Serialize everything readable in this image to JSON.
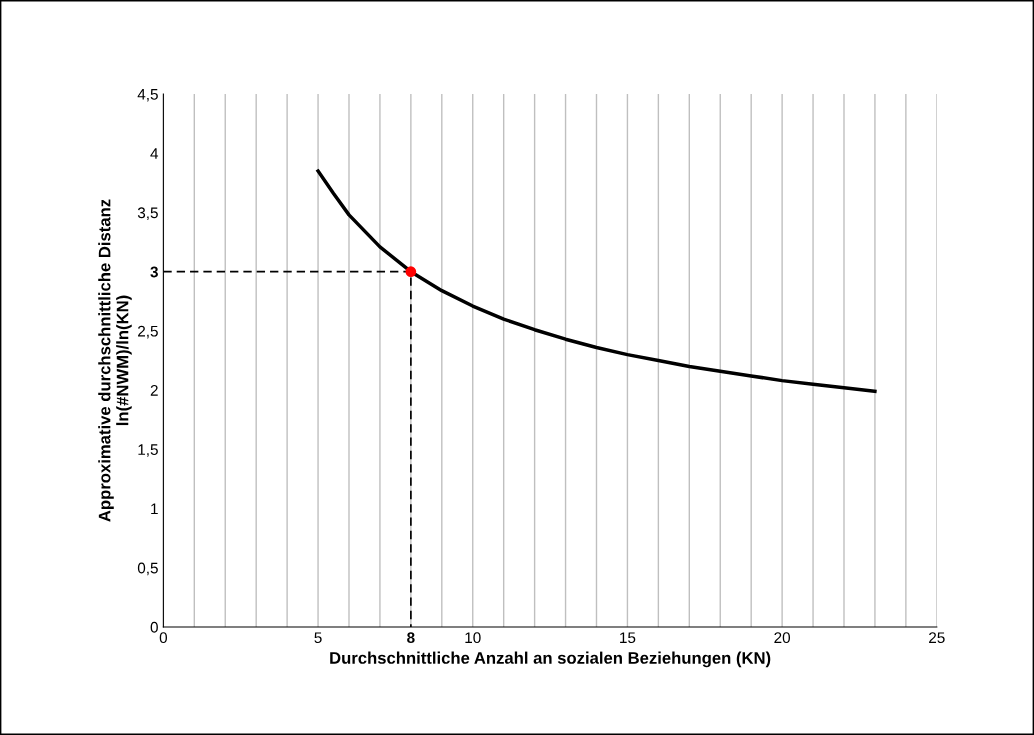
{
  "chart_data": {
    "type": "line",
    "xlabel": "Durchschnittliche Anzahl an sozialen Beziehungen (KN)",
    "ylabel": "Approximative durchschnittliche Distanz\nln(#NWM)/ln(KN)",
    "series": [
      {
        "color": "#000000",
        "line_style": "solid",
        "x": [
          5,
          5.5,
          6,
          7,
          8,
          9,
          10,
          11,
          12,
          13,
          14,
          15,
          16,
          17,
          18,
          19,
          20,
          21,
          22,
          23
        ],
        "values": [
          3.85,
          3.66,
          3.48,
          3.21,
          3.0,
          2.84,
          2.71,
          2.6,
          2.51,
          2.43,
          2.36,
          2.3,
          2.25,
          2.2,
          2.16,
          2.12,
          2.08,
          2.05,
          2.02,
          1.99
        ]
      },
      {
        "type": "line",
        "color": "#000000",
        "line_style": "dashed",
        "x": [
          0,
          8,
          8
        ],
        "values": [
          3,
          3,
          0
        ]
      },
      {
        "type": "scatter",
        "color": "#ff0000",
        "marker": "circle",
        "x": [
          8
        ],
        "values": [
          3
        ]
      }
    ],
    "xlim": [
      0,
      25
    ],
    "ylim": [
      0,
      4.5
    ],
    "xticks": [
      0,
      {
        "value": 1,
        "label": null
      },
      {
        "value": 2,
        "label": null
      },
      {
        "value": 3,
        "label": null
      },
      {
        "value": 4,
        "label": null
      },
      5,
      {
        "value": 6,
        "label": null
      },
      {
        "value": 7,
        "label": null
      },
      8,
      {
        "value": 9,
        "label": null
      },
      10,
      {
        "value": 11,
        "label": null
      },
      {
        "value": 12,
        "label": null
      },
      {
        "value": 13,
        "label": null
      },
      {
        "value": 14,
        "label": null
      },
      15,
      {
        "value": 16,
        "label": null
      },
      {
        "value": 17,
        "label": null
      },
      {
        "value": 18,
        "label": null
      },
      {
        "value": 19,
        "label": null
      },
      20,
      {
        "value": 21,
        "label": null
      },
      {
        "value": 22,
        "label": null
      },
      {
        "value": 23,
        "label": null
      },
      {
        "value": 24,
        "label": null
      },
      25
    ],
    "yticks": [
      0,
      {
        "value": 0.5,
        "label": "0,5"
      },
      1,
      {
        "value": 1.5,
        "label": "1,5"
      },
      2,
      {
        "value": 2.5,
        "label": "2,5"
      },
      3,
      {
        "value": 3.5,
        "label": "3,5"
      },
      4,
      {
        "value": 4.5,
        "label": "4,5"
      }
    ],
    "grid": "x",
    "legend": false
  }
}
